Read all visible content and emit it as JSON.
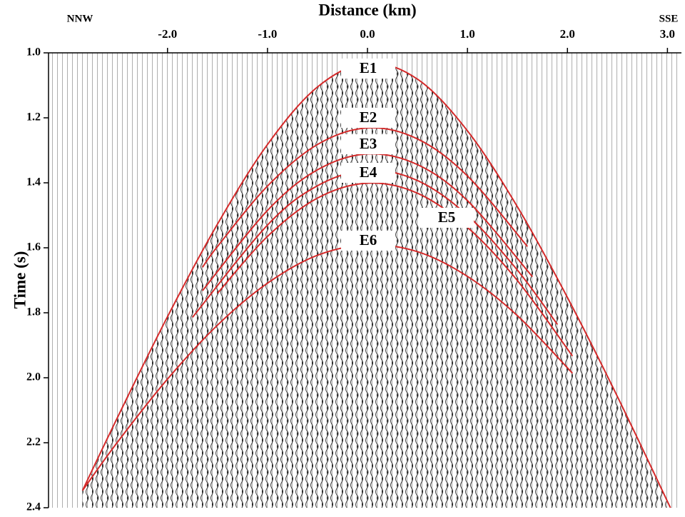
{
  "chart_data": {
    "type": "line",
    "xlabel": "Distance (km)",
    "ylabel": "Time (s)",
    "annotations": [
      "NNW",
      "SSE"
    ],
    "xlim": [
      -3.19,
      3.14
    ],
    "xticks": [
      {
        "value": -2,
        "label": "-2.0"
      },
      {
        "value": -1,
        "label": "-1.0"
      },
      {
        "value": 0,
        "label": "0.0"
      },
      {
        "value": 1,
        "label": "1.0"
      },
      {
        "value": 2,
        "label": "2.0"
      },
      {
        "value": 3,
        "label": "3.0"
      }
    ],
    "ylim": [
      1.0,
      2.4
    ],
    "yticks": [
      {
        "value": 1,
        "label": "1.0"
      },
      {
        "value": 1.2,
        "label": "1.2"
      },
      {
        "value": 1.4,
        "label": "1.4"
      },
      {
        "value": 1.6,
        "label": "1.6"
      },
      {
        "value": 1.8,
        "label": "1.8"
      },
      {
        "value": 2,
        "label": "2.0"
      },
      {
        "value": 2.2,
        "label": "2.2"
      },
      {
        "value": 2.4,
        "label": "2.4"
      }
    ],
    "y_inverted": true,
    "series": [
      {
        "name": "E1",
        "color": "#d42a2a",
        "x": [
          -2.85,
          -2.5,
          -2,
          -1.5,
          -1,
          -0.5,
          0,
          0.5,
          1,
          1.5,
          2,
          2.5,
          3.05
        ],
        "values": [
          2.347,
          2.122,
          1.812,
          1.527,
          1.282,
          1.105,
          1.031,
          1.081,
          1.24,
          1.474,
          1.753,
          2.058,
          2.413
        ]
      },
      {
        "name": "E2",
        "color": "#d42a2a",
        "x": [
          -1.65,
          -1.5,
          -1,
          -0.5,
          0,
          0.5,
          1,
          1.6
        ],
        "values": [
          1.66,
          1.596,
          1.41,
          1.282,
          1.231,
          1.265,
          1.379,
          1.596
        ]
      },
      {
        "name": "E3",
        "color": "#d42a2a",
        "x": [
          -1.65,
          -1,
          -0.5,
          0,
          0.5,
          1,
          1.65
        ],
        "values": [
          1.732,
          1.485,
          1.36,
          1.311,
          1.344,
          1.455,
          1.689
        ]
      },
      {
        "name": "E4",
        "color": "#d42a2a",
        "x": [
          -1.75,
          -1,
          -0.5,
          0,
          0.5,
          1,
          1.5,
          1.9
        ],
        "values": [
          1.814,
          1.53,
          1.409,
          1.361,
          1.393,
          1.5,
          1.669,
          1.836
        ]
      },
      {
        "name": "E5",
        "color": "#d42a2a",
        "x": [
          -1.5,
          -1,
          -0.5,
          0,
          0.5,
          1,
          1.5,
          2.05
        ],
        "values": [
          1.74,
          1.565,
          1.447,
          1.401,
          1.432,
          1.537,
          1.701,
          1.933
        ]
      },
      {
        "name": "E6",
        "color": "#d42a2a",
        "x": [
          -2.85,
          -2.5,
          -2,
          -1.5,
          -1,
          -0.5,
          0,
          0.5,
          1,
          1.5,
          2.05
        ],
        "values": [
          2.347,
          2.198,
          2.004,
          1.838,
          1.709,
          1.623,
          1.591,
          1.612,
          1.688,
          1.809,
          1.986
        ]
      }
    ]
  }
}
